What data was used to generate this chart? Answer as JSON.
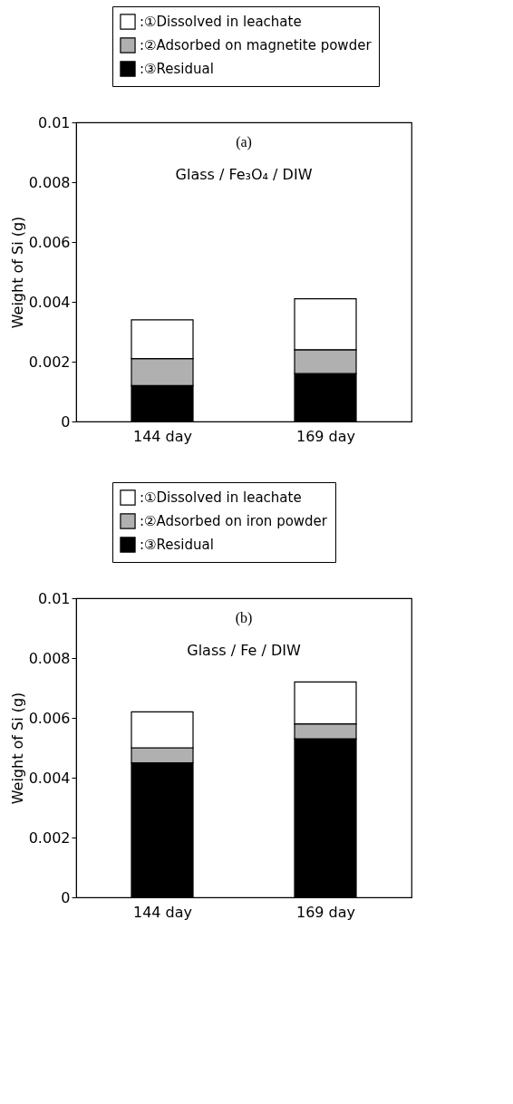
{
  "chart_data": [
    {
      "type": "bar",
      "stacked": true,
      "legend": "top",
      "ylabel": "Weight of Si (g)",
      "annotations": [
        "(a)",
        "Glass / Fe₃O₄ / DIW"
      ],
      "categories": [
        "144 day",
        "169 day"
      ],
      "ylim": [
        0,
        0.01
      ],
      "yticks": [
        0,
        0.002,
        0.004,
        0.006,
        0.008,
        0.01
      ],
      "grid": false,
      "series": [
        {
          "name": ":③Residual",
          "color": "#000000",
          "values": [
            0.0012,
            0.0016
          ]
        },
        {
          "name": ":②Adsorbed on magnetite powder",
          "color": "#b0b0b0",
          "values": [
            0.0009,
            0.0008
          ]
        },
        {
          "name": ":①Dissolved in leachate",
          "color": "#ffffff",
          "values": [
            0.0013,
            0.0017
          ]
        }
      ]
    },
    {
      "type": "bar",
      "stacked": true,
      "legend": "top",
      "ylabel": "Weight of Si (g)",
      "annotations": [
        "(b)",
        "Glass / Fe / DIW"
      ],
      "categories": [
        "144 day",
        "169 day"
      ],
      "ylim": [
        0,
        0.01
      ],
      "yticks": [
        0,
        0.002,
        0.004,
        0.006,
        0.008,
        0.01
      ],
      "grid": false,
      "series": [
        {
          "name": ":③Residual",
          "color": "#000000",
          "values": [
            0.0045,
            0.0053
          ]
        },
        {
          "name": ":②Adsorbed on iron powder",
          "color": "#b0b0b0",
          "values": [
            0.0005,
            0.0005
          ]
        },
        {
          "name": ":①Dissolved in leachate",
          "color": "#ffffff",
          "values": [
            0.0012,
            0.0014
          ]
        }
      ]
    }
  ]
}
